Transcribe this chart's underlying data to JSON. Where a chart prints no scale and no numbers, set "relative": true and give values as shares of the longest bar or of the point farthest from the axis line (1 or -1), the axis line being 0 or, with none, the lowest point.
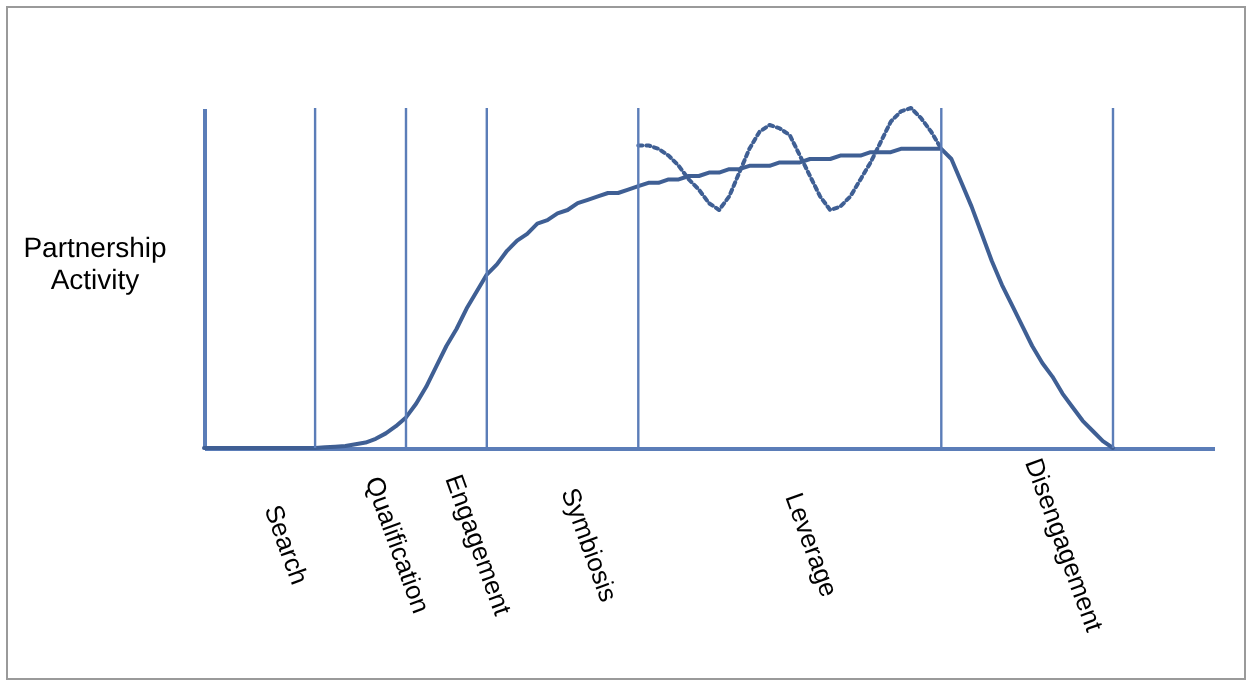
{
  "chart_data": {
    "type": "line",
    "relative": true,
    "ylabel": "Partnership Activity",
    "grid": false,
    "categories": [
      null,
      null,
      null,
      null,
      null,
      null,
      null,
      null,
      "Search",
      null,
      null,
      null,
      null,
      null,
      null,
      null,
      null,
      null,
      null,
      "Qualification",
      null,
      null,
      null,
      null,
      null,
      null,
      null,
      "Engagement",
      null,
      null,
      null,
      null,
      null,
      null,
      null,
      null,
      null,
      null,
      "Symbiosis",
      null,
      null,
      null,
      null,
      null,
      null,
      null,
      null,
      null,
      null,
      null,
      null,
      null,
      null,
      null,
      null,
      null,
      null,
      null,
      null,
      null,
      "Leverage",
      null,
      null,
      null,
      null,
      null,
      null,
      null,
      null,
      null,
      null,
      null,
      null,
      null,
      null,
      null,
      null,
      null,
      null,
      null,
      null,
      null,
      null,
      null,
      null,
      "Disengagement",
      null,
      null,
      null,
      null,
      null,
      null,
      null,
      null,
      null,
      null,
      null,
      null,
      null,
      null,
      null
    ],
    "series": [
      {
        "color": "#3f5f94",
        "line_style": "solid",
        "values": [
          0,
          0,
          0,
          0,
          0,
          0,
          0,
          0,
          0,
          0,
          0,
          0,
          0.002,
          0.004,
          0.006,
          0.011,
          0.016,
          0.027,
          0.043,
          0.064,
          0.09,
          0.13,
          0.18,
          0.24,
          0.3,
          0.35,
          0.41,
          0.46,
          0.51,
          0.54,
          0.58,
          0.61,
          0.63,
          0.66,
          0.67,
          0.69,
          0.7,
          0.72,
          0.73,
          0.74,
          0.75,
          0.75,
          0.76,
          0.77,
          0.78,
          0.78,
          0.79,
          0.79,
          0.8,
          0.8,
          0.81,
          0.81,
          0.82,
          0.82,
          0.83,
          0.83,
          0.83,
          0.84,
          0.84,
          0.84,
          0.85,
          0.85,
          0.85,
          0.86,
          0.86,
          0.86,
          0.87,
          0.87,
          0.87,
          0.88,
          0.88,
          0.88,
          0.88,
          0.88,
          0.85,
          0.78,
          0.71,
          0.63,
          0.55,
          0.48,
          0.42,
          0.36,
          0.3,
          0.25,
          0.21,
          0.16,
          0.12,
          0.08,
          0.05,
          0.02,
          0,
          null,
          null,
          null,
          null,
          null,
          null,
          null,
          null,
          null,
          null
        ]
      },
      {
        "color": "#3f5f94",
        "line_style": "dotted",
        "values": [
          null,
          null,
          null,
          null,
          null,
          null,
          null,
          null,
          null,
          null,
          null,
          null,
          null,
          null,
          null,
          null,
          null,
          null,
          null,
          null,
          null,
          null,
          null,
          null,
          null,
          null,
          null,
          null,
          null,
          null,
          null,
          null,
          null,
          null,
          null,
          null,
          null,
          null,
          null,
          null,
          null,
          null,
          null,
          0.89,
          0.89,
          0.88,
          0.86,
          0.83,
          0.79,
          0.76,
          0.72,
          0.7,
          0.74,
          0.81,
          0.88,
          0.93,
          0.95,
          0.94,
          0.92,
          0.86,
          0.8,
          0.74,
          0.7,
          0.71,
          0.74,
          0.79,
          0.84,
          0.9,
          0.96,
          0.99,
          1,
          0.97,
          0.93,
          0.88,
          null,
          null,
          null,
          null,
          null,
          null,
          null,
          null,
          null,
          null,
          null,
          null,
          null,
          null,
          null,
          null,
          null,
          null,
          null,
          null,
          null,
          null,
          null,
          null,
          null,
          null,
          null
        ]
      }
    ]
  }
}
